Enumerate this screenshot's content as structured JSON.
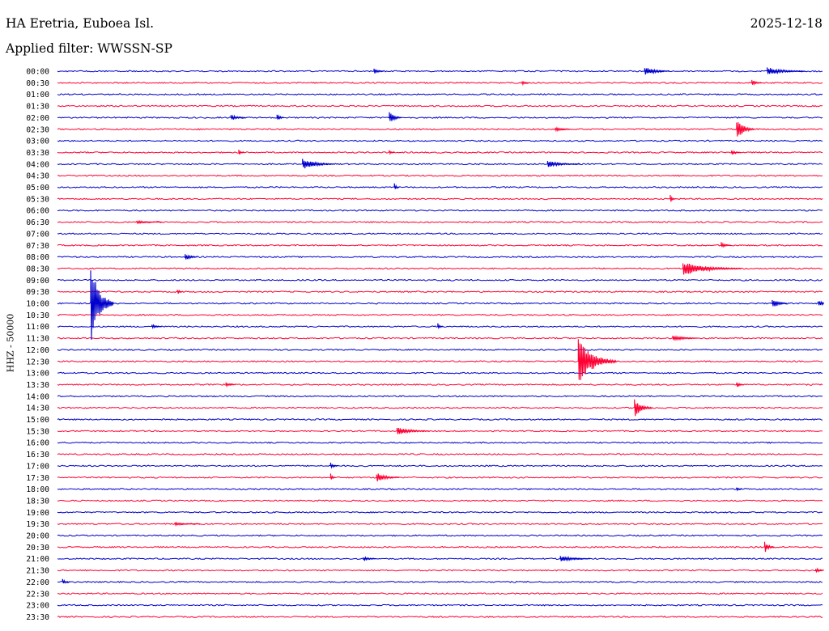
{
  "header": {
    "station": "HA Eretria, Euboea Isl.",
    "date": "2025-12-18",
    "filter": "Applied filter: WWSSN-SP",
    "channel": "HHZ - 50000"
  },
  "colors": {
    "even_trace": "#0000cc",
    "odd_trace": "#ff0033",
    "text": "#000000"
  },
  "chart_data": {
    "type": "line",
    "title": "HA Eretria, Euboea Isl.",
    "ylabel": "HHZ - 50000",
    "rows": [
      "00:00",
      "00:30",
      "01:00",
      "01:30",
      "02:00",
      "02:30",
      "03:00",
      "03:30",
      "04:00",
      "04:30",
      "05:00",
      "05:30",
      "06:00",
      "06:30",
      "07:00",
      "07:30",
      "08:00",
      "08:30",
      "09:00",
      "09:30",
      "10:00",
      "10:30",
      "11:00",
      "11:30",
      "12:00",
      "12:30",
      "13:00",
      "13:30",
      "14:00",
      "14:30",
      "15:00",
      "15:30",
      "16:00",
      "16:30",
      "17:00",
      "17:30",
      "18:00",
      "18:30",
      "19:00",
      "19:30",
      "20:00",
      "20:30",
      "21:00",
      "21:30",
      "22:00",
      "22:30",
      "23:00",
      "23:30"
    ],
    "row_colors": [
      "blue",
      "red"
    ],
    "events": [
      {
        "row": "00:00",
        "minute": 12.4,
        "amplitude": 4,
        "duration": 0.4
      },
      {
        "row": "00:00",
        "minute": 23.0,
        "amplitude": 6,
        "duration": 1.0
      },
      {
        "row": "00:00",
        "minute": 27.8,
        "amplitude": 5,
        "duration": 1.5
      },
      {
        "row": "00:30",
        "minute": 18.2,
        "amplitude": 3,
        "duration": 0.3
      },
      {
        "row": "00:30",
        "minute": 27.2,
        "amplitude": 4,
        "duration": 0.4
      },
      {
        "row": "02:00",
        "minute": 6.8,
        "amplitude": 4,
        "duration": 0.6
      },
      {
        "row": "02:00",
        "minute": 8.6,
        "amplitude": 5,
        "duration": 0.3
      },
      {
        "row": "02:00",
        "minute": 13.0,
        "amplitude": 8,
        "duration": 0.5
      },
      {
        "row": "02:30",
        "minute": 19.5,
        "amplitude": 3,
        "duration": 0.6
      },
      {
        "row": "02:30",
        "minute": 26.6,
        "amplitude": 14,
        "duration": 0.7
      },
      {
        "row": "03:30",
        "minute": 7.1,
        "amplitude": 4,
        "duration": 0.2
      },
      {
        "row": "03:30",
        "minute": 13.0,
        "amplitude": 3,
        "duration": 0.2
      },
      {
        "row": "03:30",
        "minute": 26.4,
        "amplitude": 4,
        "duration": 0.4
      },
      {
        "row": "04:00",
        "minute": 9.6,
        "amplitude": 7,
        "duration": 1.3
      },
      {
        "row": "04:00",
        "minute": 19.2,
        "amplitude": 4,
        "duration": 1.3
      },
      {
        "row": "05:00",
        "minute": 13.2,
        "amplitude": 5,
        "duration": 0.2
      },
      {
        "row": "05:30",
        "minute": 24.0,
        "amplitude": 6,
        "duration": 0.2
      },
      {
        "row": "06:30",
        "minute": 3.1,
        "amplitude": 2,
        "duration": 1.0
      },
      {
        "row": "07:30",
        "minute": 26.0,
        "amplitude": 4,
        "duration": 0.4
      },
      {
        "row": "08:00",
        "minute": 5.0,
        "amplitude": 5,
        "duration": 0.5
      },
      {
        "row": "08:30",
        "minute": 24.5,
        "amplitude": 9,
        "duration": 2.3
      },
      {
        "row": "09:30",
        "minute": 4.7,
        "amplitude": 4,
        "duration": 0.2
      },
      {
        "row": "10:00",
        "minute": 1.3,
        "amplitude": 50,
        "duration": 0.9
      },
      {
        "row": "10:00",
        "minute": 28.0,
        "amplitude": 7,
        "duration": 0.6
      },
      {
        "row": "10:00",
        "minute": 29.8,
        "amplitude": 3,
        "duration": 1.0
      },
      {
        "row": "11:00",
        "minute": 3.7,
        "amplitude": 3,
        "duration": 0.4
      },
      {
        "row": "11:00",
        "minute": 14.9,
        "amplitude": 4,
        "duration": 0.2
      },
      {
        "row": "11:30",
        "minute": 24.1,
        "amplitude": 4,
        "duration": 1.0
      },
      {
        "row": "12:30",
        "minute": 20.4,
        "amplitude": 30,
        "duration": 1.5
      },
      {
        "row": "13:30",
        "minute": 6.6,
        "amplitude": 3,
        "duration": 0.4
      },
      {
        "row": "13:30",
        "minute": 26.6,
        "amplitude": 4,
        "duration": 0.3
      },
      {
        "row": "14:30",
        "minute": 22.6,
        "amplitude": 12,
        "duration": 0.7
      },
      {
        "row": "15:30",
        "minute": 13.3,
        "amplitude": 5,
        "duration": 1.3
      },
      {
        "row": "17:00",
        "minute": 10.7,
        "amplitude": 4,
        "duration": 0.3
      },
      {
        "row": "17:30",
        "minute": 10.7,
        "amplitude": 5,
        "duration": 0.2
      },
      {
        "row": "17:30",
        "minute": 12.5,
        "amplitude": 6,
        "duration": 0.9
      },
      {
        "row": "18:00",
        "minute": 26.6,
        "amplitude": 3,
        "duration": 0.2
      },
      {
        "row": "19:30",
        "minute": 4.6,
        "amplitude": 2,
        "duration": 1.0
      },
      {
        "row": "20:30",
        "minute": 27.7,
        "amplitude": 8,
        "duration": 0.4
      },
      {
        "row": "21:00",
        "minute": 12.0,
        "amplitude": 3,
        "duration": 0.5
      },
      {
        "row": "21:00",
        "minute": 19.7,
        "amplitude": 4,
        "duration": 1.2
      },
      {
        "row": "21:30",
        "minute": 29.7,
        "amplitude": 3,
        "duration": 0.4
      },
      {
        "row": "22:00",
        "minute": 0.2,
        "amplitude": 4,
        "duration": 0.3
      }
    ]
  }
}
